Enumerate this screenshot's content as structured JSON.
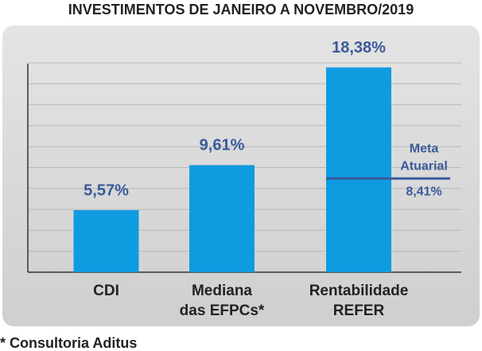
{
  "chart_data": {
    "type": "bar",
    "title": "INVESTIMENTOS DE JANEIRO A NOVEMBRO/2019",
    "categories": [
      [
        "CDI"
      ],
      [
        "Mediana",
        "das EFPCs*"
      ],
      [
        "Rentabilidade",
        "REFER"
      ]
    ],
    "values": [
      5.57,
      9.61,
      18.38
    ],
    "value_labels": [
      "5,57%",
      "9,61%",
      "18,38%"
    ],
    "color": "#0f9be0",
    "ylim": [
      0,
      20
    ],
    "reference_line": {
      "label": [
        "Meta",
        "Atuarial"
      ],
      "value": 8.41,
      "value_label": "8,41%",
      "color": "#3b5a9a",
      "category": 2
    },
    "footnote": "* Consultoria Aditus"
  }
}
